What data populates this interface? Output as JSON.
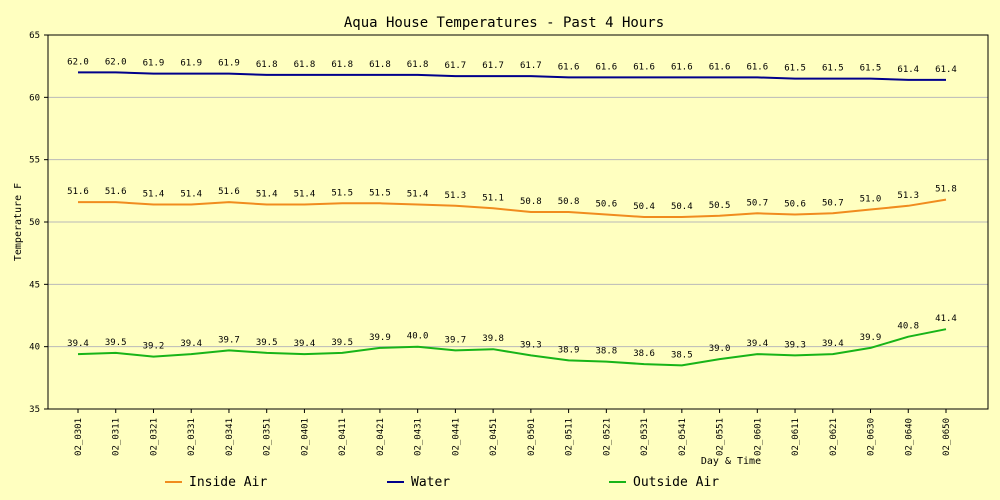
{
  "chart_data": {
    "type": "line",
    "title": "Aqua House Temperatures  - Past 4 Hours",
    "xlabel": "Day & Time",
    "ylabel": "Temperature F",
    "ylim": [
      35,
      65
    ],
    "yticks": [
      35,
      40,
      45,
      50,
      55,
      60,
      65
    ],
    "grid": true,
    "legend_position": "bottom",
    "categories": [
      "02_0301",
      "02_0311",
      "02_0321",
      "02_0331",
      "02_0341",
      "02_0351",
      "02_0401",
      "02_0411",
      "02_0421",
      "02_0431",
      "02_0441",
      "02_0451",
      "02_0501",
      "02_0511",
      "02_0521",
      "02_0531",
      "02_0541",
      "02_0551",
      "02_0601",
      "02_0611",
      "02_0621",
      "02_0630",
      "02_0640",
      "02_0650"
    ],
    "series": [
      {
        "name": "Inside Air",
        "color": "#f08c1e",
        "values": [
          51.6,
          51.6,
          51.4,
          51.4,
          51.6,
          51.4,
          51.4,
          51.5,
          51.5,
          51.4,
          51.3,
          51.1,
          50.8,
          50.8,
          50.6,
          50.4,
          50.4,
          50.5,
          50.7,
          50.6,
          50.7,
          51.0,
          51.3,
          51.8
        ]
      },
      {
        "name": "Water",
        "color": "#00008b",
        "values": [
          62.0,
          62.0,
          61.9,
          61.9,
          61.9,
          61.8,
          61.8,
          61.8,
          61.8,
          61.8,
          61.7,
          61.7,
          61.7,
          61.6,
          61.6,
          61.6,
          61.6,
          61.6,
          61.6,
          61.5,
          61.5,
          61.5,
          61.4,
          61.4
        ]
      },
      {
        "name": "Outside Air",
        "color": "#18b418",
        "values": [
          39.4,
          39.5,
          39.2,
          39.4,
          39.7,
          39.5,
          39.4,
          39.5,
          39.9,
          40.0,
          39.7,
          39.8,
          39.3,
          38.9,
          38.8,
          38.6,
          38.5,
          39.0,
          39.4,
          39.3,
          39.4,
          39.9,
          40.8,
          41.4
        ]
      }
    ]
  }
}
